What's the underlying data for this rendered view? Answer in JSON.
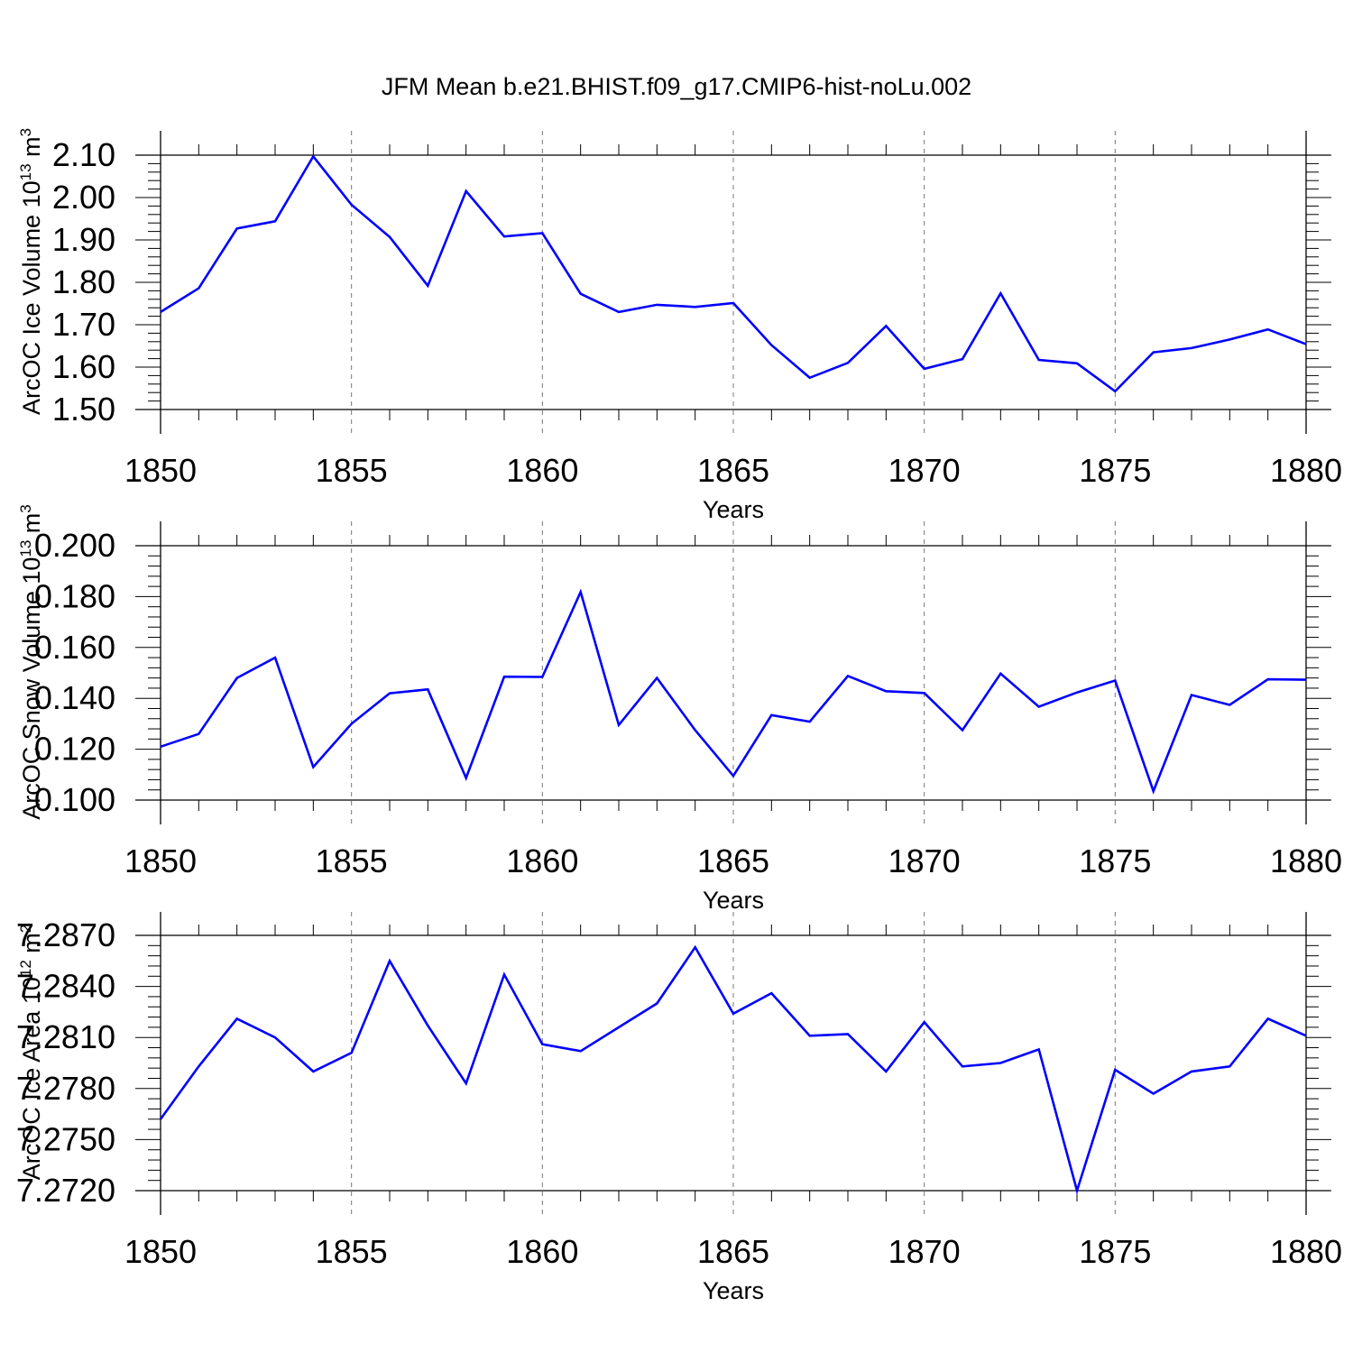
{
  "title": "JFM Mean b.e21.BHIST.f09_g17.CMIP6-hist-noLu.002",
  "line_color": "#0000ff",
  "chart_data": [
    {
      "type": "line",
      "title": "JFM Mean b.e21.BHIST.f09_g17.CMIP6-hist-noLu.002",
      "xlabel": "Years",
      "ylabel": "ArcOC Ice Volume 10",
      "ylabel_sup": "13",
      "ylabel_unit": "m",
      "ylabel_unit_sup": "3",
      "xlim": [
        1850,
        1880
      ],
      "ylim": [
        1.5,
        2.1
      ],
      "xticks": [
        1850,
        1855,
        1860,
        1865,
        1870,
        1875,
        1880
      ],
      "yticks": [
        "1.50",
        "1.60",
        "1.70",
        "1.80",
        "1.90",
        "2.00",
        "2.10"
      ],
      "grid_x": true,
      "x": [
        1850,
        1851,
        1852,
        1853,
        1854,
        1855,
        1856,
        1857,
        1858,
        1859,
        1860,
        1861,
        1862,
        1863,
        1864,
        1865,
        1866,
        1867,
        1868,
        1869,
        1870,
        1871,
        1872,
        1873,
        1874,
        1875,
        1876,
        1877,
        1878,
        1879,
        1880
      ],
      "y": [
        1.73,
        1.786,
        1.927,
        1.944,
        2.097,
        1.983,
        1.907,
        1.792,
        2.015,
        1.908,
        1.916,
        1.773,
        1.73,
        1.747,
        1.742,
        1.751,
        1.652,
        1.575,
        1.61,
        1.697,
        1.596,
        1.619,
        1.774,
        1.617,
        1.609,
        1.543,
        1.635,
        1.645,
        1.665,
        1.689,
        1.654
      ]
    },
    {
      "type": "line",
      "xlabel": "Years",
      "ylabel": "ArcOC Snow Volume 10",
      "ylabel_sup": "13",
      "ylabel_unit": "m",
      "ylabel_unit_sup": "3",
      "xlim": [
        1850,
        1880
      ],
      "ylim": [
        0.1,
        0.2
      ],
      "xticks": [
        1850,
        1855,
        1860,
        1865,
        1870,
        1875,
        1880
      ],
      "yticks": [
        "0.100",
        "0.120",
        "0.140",
        "0.160",
        "0.180",
        "0.200"
      ],
      "grid_x": true,
      "x": [
        1850,
        1851,
        1852,
        1853,
        1854,
        1855,
        1856,
        1857,
        1858,
        1859,
        1860,
        1861,
        1862,
        1863,
        1864,
        1865,
        1866,
        1867,
        1868,
        1869,
        1870,
        1871,
        1872,
        1873,
        1874,
        1875,
        1876,
        1877,
        1878,
        1879,
        1880
      ],
      "y": [
        0.121,
        0.126,
        0.148,
        0.156,
        0.113,
        0.13,
        0.142,
        0.1435,
        0.1087,
        0.1485,
        0.1484,
        0.1818,
        0.1295,
        0.148,
        0.1275,
        0.1095,
        0.1334,
        0.1308,
        0.1488,
        0.1428,
        0.1421,
        0.1275,
        0.1497,
        0.1367,
        0.1423,
        0.147,
        0.1035,
        0.1413,
        0.1374,
        0.1475,
        0.1473
      ]
    },
    {
      "type": "line",
      "xlabel": "Years",
      "ylabel": "ArcOC Ice Area 10",
      "ylabel_sup": "12",
      "ylabel_unit": "m",
      "ylabel_unit_sup": "2",
      "xlim": [
        1850,
        1880
      ],
      "ylim": [
        7.272,
        7.287
      ],
      "xticks": [
        1850,
        1855,
        1860,
        1865,
        1870,
        1875,
        1880
      ],
      "yticks": [
        "7.2720",
        "7.2750",
        "7.2780",
        "7.2810",
        "7.2840",
        "7.2870"
      ],
      "grid_x": true,
      "x": [
        1850,
        1851,
        1852,
        1853,
        1854,
        1855,
        1856,
        1857,
        1858,
        1859,
        1860,
        1861,
        1862,
        1863,
        1864,
        1865,
        1866,
        1867,
        1868,
        1869,
        1870,
        1871,
        1872,
        1873,
        1874,
        1875,
        1876,
        1877,
        1878,
        1879,
        1880
      ],
      "y": [
        7.2762,
        7.2793,
        7.2821,
        7.281,
        7.279,
        7.2801,
        7.2855,
        7.2817,
        7.2783,
        7.2847,
        7.2806,
        7.2802,
        7.2816,
        7.283,
        7.2863,
        7.2824,
        7.2836,
        7.2811,
        7.2812,
        7.279,
        7.2819,
        7.2793,
        7.2795,
        7.2803,
        7.272,
        7.2791,
        7.2777,
        7.279,
        7.2793,
        7.2821,
        7.2811
      ]
    }
  ]
}
